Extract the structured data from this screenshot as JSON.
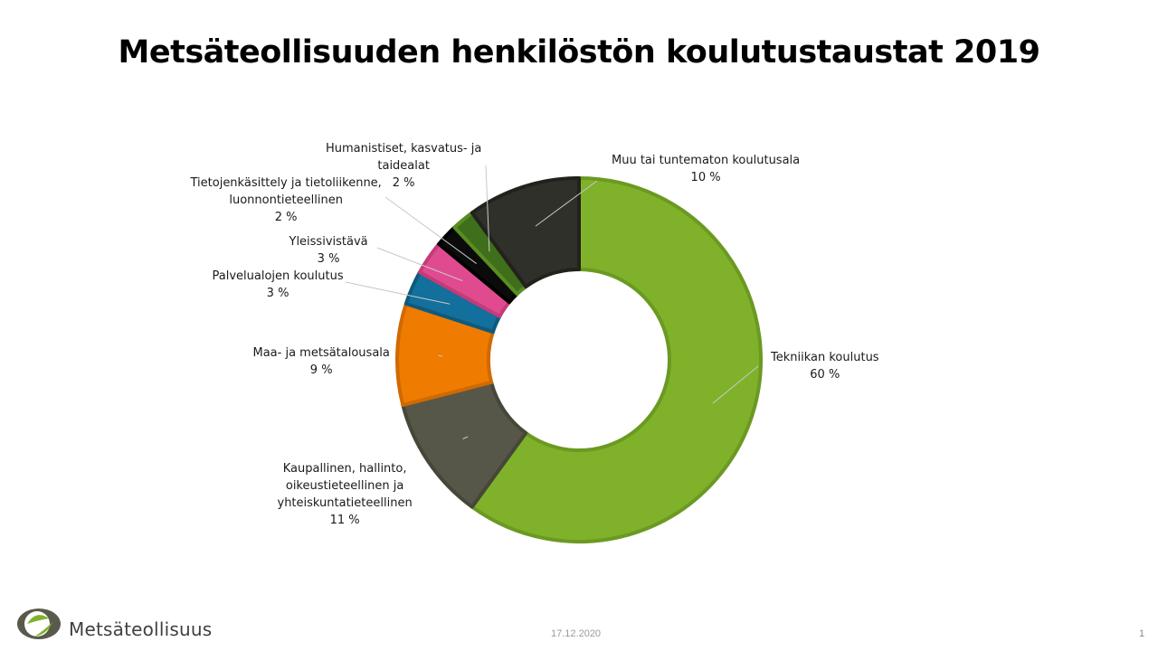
{
  "slide": {
    "title": "Metsäteollisuuden henkilöstön koulutustaustat 2019",
    "logo_text": "Metsäteollisuus",
    "date": "17.12.2020",
    "page_number": "1"
  },
  "chart_data": {
    "type": "pie",
    "variant": "donut",
    "title": "Metsäteollisuuden henkilöstön koulutustaustat 2019",
    "unit": "%",
    "start": "12 o'clock, clockwise",
    "slices": [
      {
        "label": "Tekniikan koulutus",
        "display_lines": [
          "Tekniikan koulutus"
        ],
        "value_label": "60 %",
        "value": 60,
        "color": "#7fb22a",
        "border": "#6b9922"
      },
      {
        "label": "Kaupallinen, hallinto, oikeustieteellinen ja yhteiskuntatieteellinen",
        "display_lines": [
          "Kaupallinen, hallinto,",
          "oikeustieteellinen ja",
          "yhteiskuntatieteellinen"
        ],
        "value_label": "11 %",
        "value": 11,
        "color": "#565748",
        "border": "#464738"
      },
      {
        "label": "Maa- ja metsätalousala",
        "display_lines": [
          "Maa- ja metsätalousala"
        ],
        "value_label": "9 %",
        "value": 9,
        "color": "#ef7b00",
        "border": "#cf6a00"
      },
      {
        "label": "Palvelualojen koulutus",
        "display_lines": [
          "Palvelualojen koulutus"
        ],
        "value_label": "3 %",
        "value": 3,
        "color": "#136f9b",
        "border": "#0e5a7e"
      },
      {
        "label": "Yleissivistävä",
        "display_lines": [
          "Yleissivistävä"
        ],
        "value_label": "3 %",
        "value": 3,
        "color": "#e04b8f",
        "border": "#c43b79"
      },
      {
        "label": "Tietojenkäsittely ja tietoliikenne, luonnontieteellinen",
        "display_lines": [
          "Tietojenkäsittely ja tietoliikenne,",
          "luonnontieteellinen"
        ],
        "value_label": "2 %",
        "value": 2,
        "color": "#0b0b0b",
        "border": "#000000"
      },
      {
        "label": "Humanistiset, kasvatus- ja taidealat",
        "display_lines": [
          "Humanistiset, kasvatus- ja",
          "taidealat"
        ],
        "value_label": "2 %",
        "value": 2,
        "color": "#3f6f1a",
        "border": "#5a8d22"
      },
      {
        "label": "Muu tai tuntematon koulutusala",
        "display_lines": [
          "Muu tai tuntematon  koulutusala"
        ],
        "value_label": "10 %",
        "value": 10,
        "color": "#30302a",
        "border": "#22221d"
      }
    ]
  }
}
